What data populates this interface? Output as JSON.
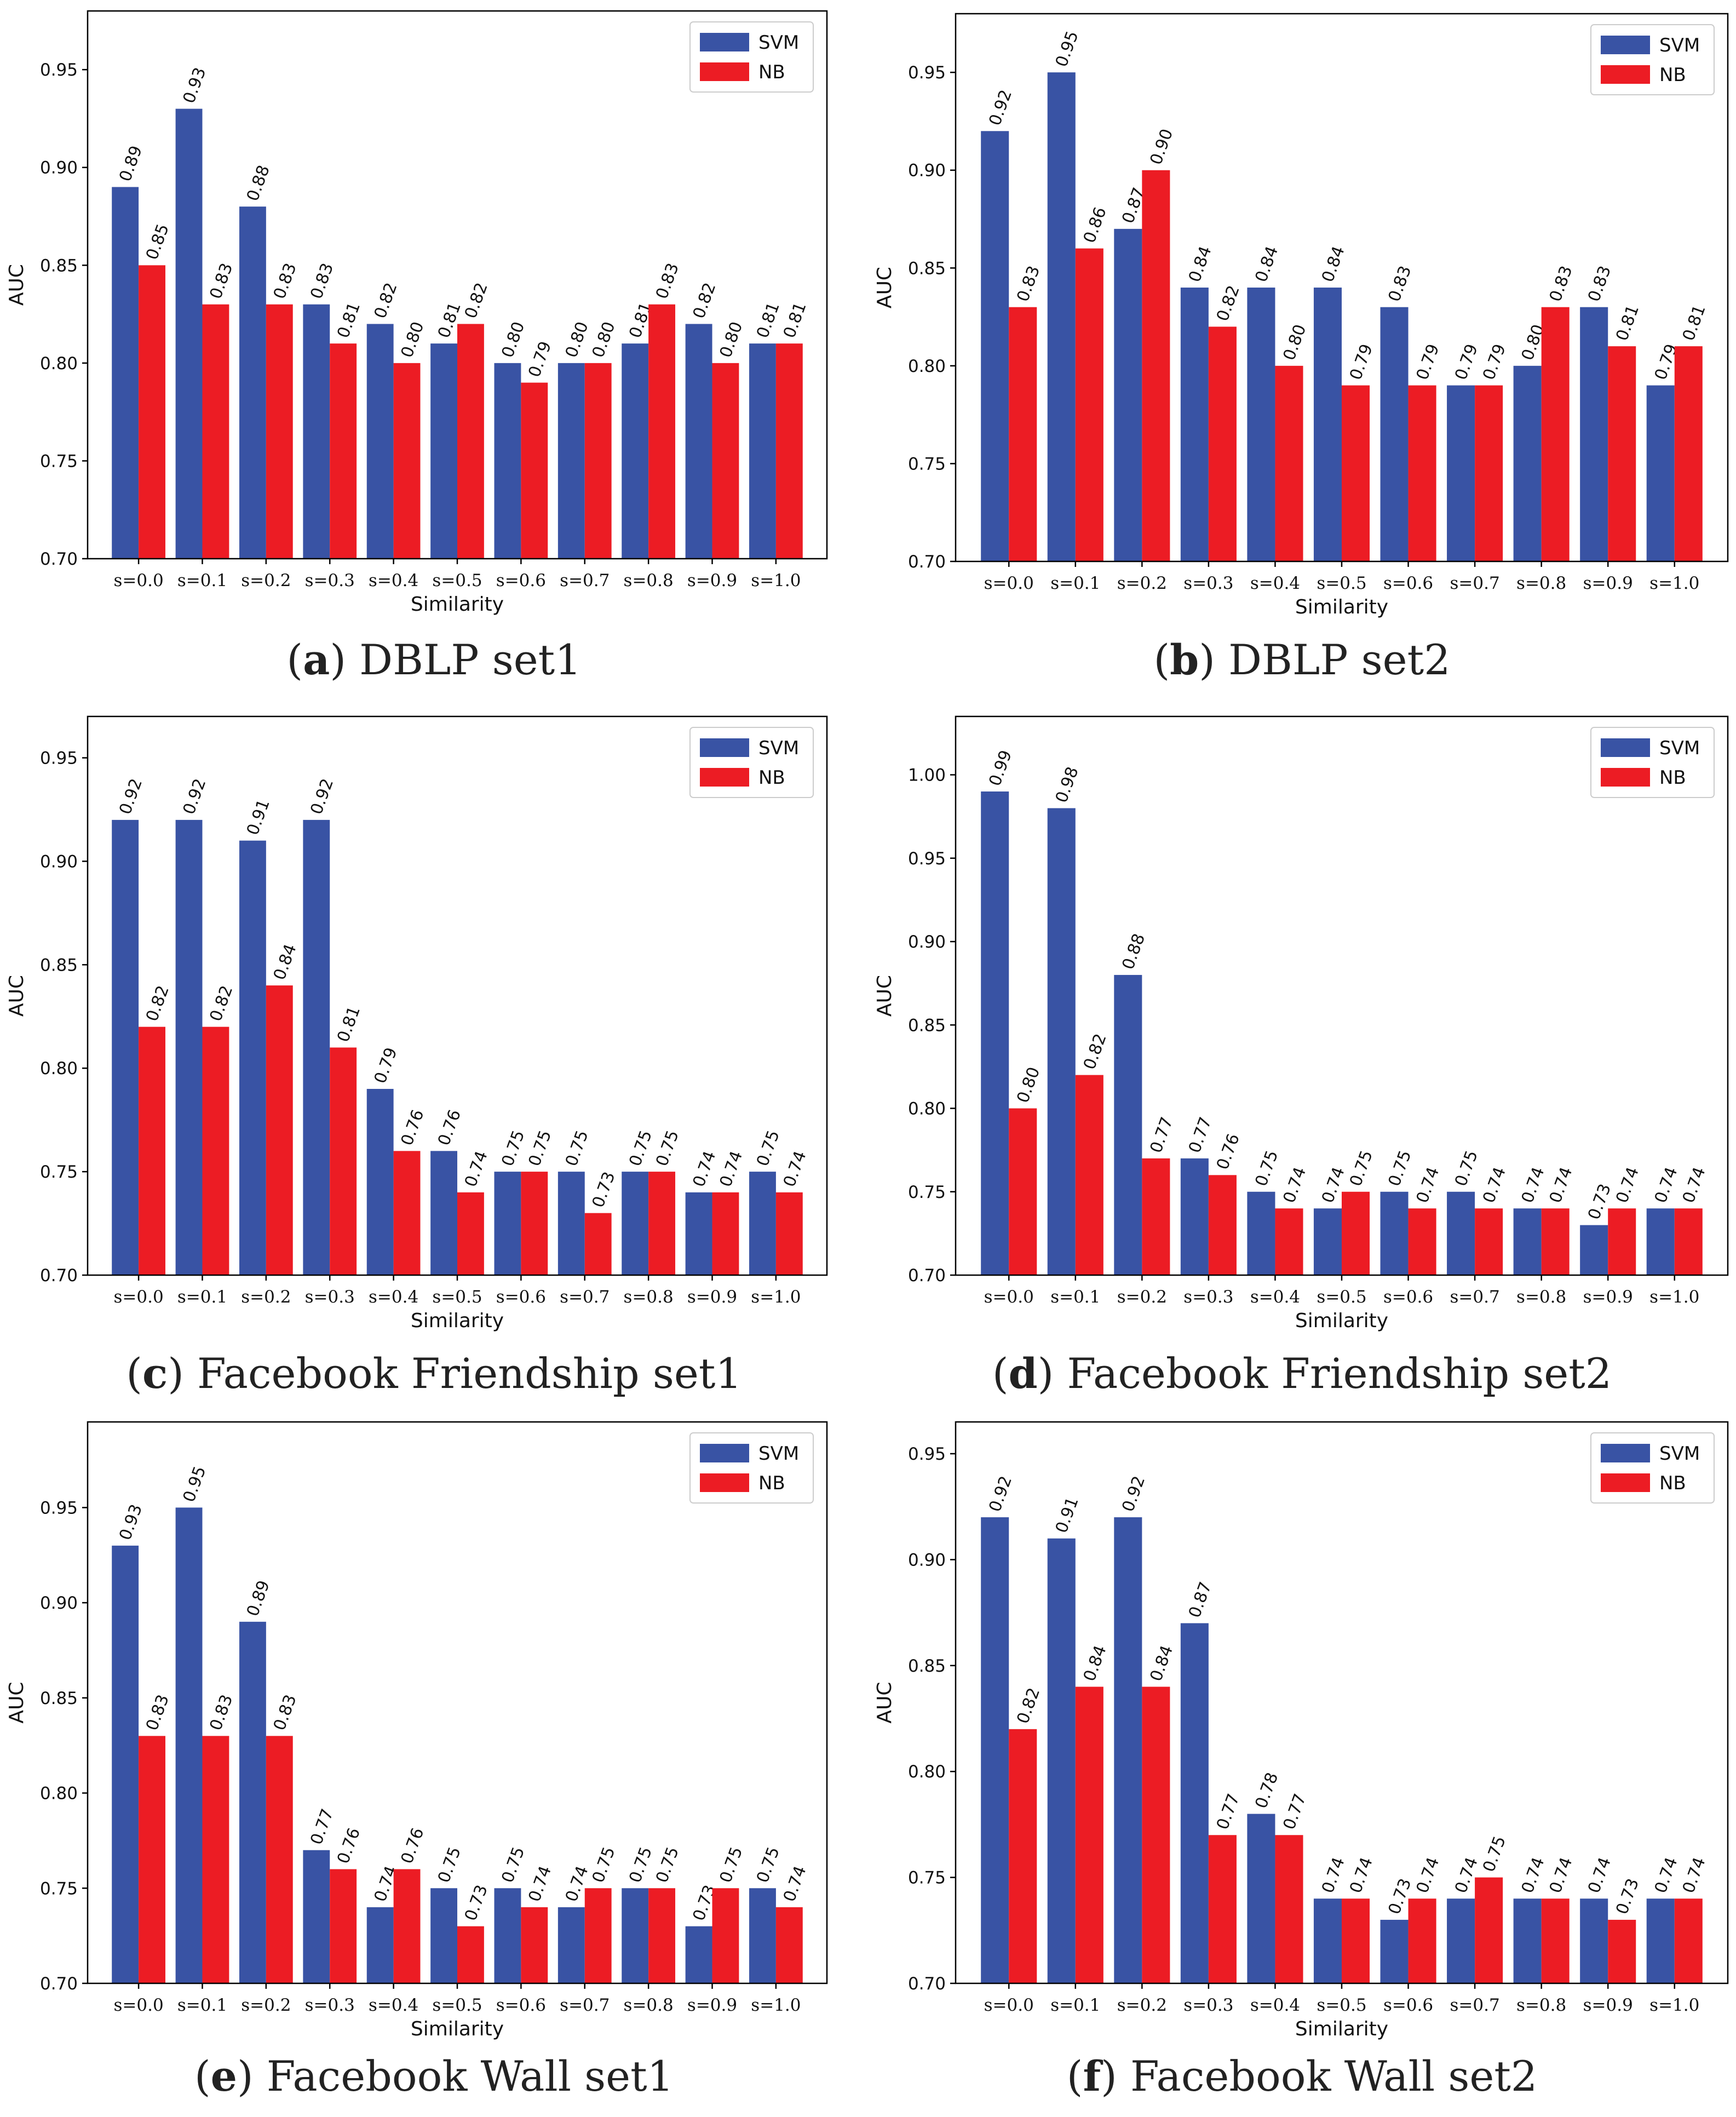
{
  "colors": {
    "SVM": "#3953a4",
    "NB": "#ec1c24"
  },
  "captions": [
    {
      "letter": "a",
      "text": "DBLP set1"
    },
    {
      "letter": "b",
      "text": "DBLP set2"
    },
    {
      "letter": "c",
      "text": "Facebook Friendship set1"
    },
    {
      "letter": "d",
      "text": "Facebook Friendship set2"
    },
    {
      "letter": "e",
      "text": "Facebook Wall set1"
    },
    {
      "letter": "f",
      "text": "Facebook Wall set2"
    }
  ],
  "chart_data": [
    {
      "type": "bar",
      "categories": [
        "s=0.0",
        "s=0.1",
        "s=0.2",
        "s=0.3",
        "s=0.4",
        "s=0.5",
        "s=0.6",
        "s=0.7",
        "s=0.8",
        "s=0.9",
        "s=1.0"
      ],
      "series": [
        {
          "name": "SVM",
          "values": [
            0.89,
            0.93,
            0.88,
            0.83,
            0.82,
            0.81,
            0.8,
            0.8,
            0.81,
            0.82,
            0.81
          ]
        },
        {
          "name": "NB",
          "values": [
            0.85,
            0.83,
            0.83,
            0.81,
            0.8,
            0.82,
            0.79,
            0.8,
            0.83,
            0.8,
            0.81
          ]
        }
      ],
      "data_labels": {
        "SVM": [
          "0.89",
          "0.93",
          "0.88",
          "0.83",
          "0.82",
          "0.81",
          "0.80",
          "0.80",
          "0.81",
          "0.82",
          "0.81"
        ],
        "NB": [
          "0.85",
          "0.83",
          "0.83",
          "0.81",
          "0.80",
          "0.82",
          "0.79",
          "0.80",
          "0.83",
          "0.80",
          "0.81"
        ]
      },
      "xlabel": "Similarity",
      "ylabel": "AUC",
      "ylim": [
        0.7,
        0.98
      ],
      "yticks": [
        "0.70",
        "0.75",
        "0.80",
        "0.85",
        "0.90",
        "0.95"
      ],
      "legend": "top-right",
      "grid": false
    },
    {
      "type": "bar",
      "categories": [
        "s=0.0",
        "s=0.1",
        "s=0.2",
        "s=0.3",
        "s=0.4",
        "s=0.5",
        "s=0.6",
        "s=0.7",
        "s=0.8",
        "s=0.9",
        "s=1.0"
      ],
      "series": [
        {
          "name": "SVM",
          "values": [
            0.92,
            0.95,
            0.87,
            0.84,
            0.84,
            0.84,
            0.83,
            0.79,
            0.8,
            0.83,
            0.79
          ]
        },
        {
          "name": "NB",
          "values": [
            0.83,
            0.86,
            0.9,
            0.82,
            0.8,
            0.79,
            0.79,
            0.79,
            0.83,
            0.81,
            0.81
          ]
        }
      ],
      "data_labels": {
        "SVM": [
          "0.92",
          "0.95",
          "0.87",
          "0.84",
          "0.84",
          "0.84",
          "0.83",
          "0.79",
          "0.80",
          "0.83",
          "0.79"
        ],
        "NB": [
          "0.83",
          "0.86",
          "0.90",
          "0.82",
          "0.80",
          "0.79",
          "0.79",
          "0.79",
          "0.83",
          "0.81",
          "0.81"
        ]
      },
      "xlabel": "Similarity",
      "ylabel": "AUC",
      "ylim": [
        0.7,
        0.98
      ],
      "yticks": [
        "0.70",
        "0.75",
        "0.80",
        "0.85",
        "0.90",
        "0.95"
      ],
      "legend": "top-right",
      "grid": false
    },
    {
      "type": "bar",
      "categories": [
        "s=0.0",
        "s=0.1",
        "s=0.2",
        "s=0.3",
        "s=0.4",
        "s=0.5",
        "s=0.6",
        "s=0.7",
        "s=0.8",
        "s=0.9",
        "s=1.0"
      ],
      "series": [
        {
          "name": "SVM",
          "values": [
            0.92,
            0.92,
            0.91,
            0.92,
            0.79,
            0.76,
            0.75,
            0.75,
            0.75,
            0.74,
            0.75
          ]
        },
        {
          "name": "NB",
          "values": [
            0.82,
            0.82,
            0.84,
            0.81,
            0.76,
            0.74,
            0.75,
            0.73,
            0.75,
            0.74,
            0.74
          ]
        }
      ],
      "data_labels": {
        "SVM": [
          "0.92",
          "0.92",
          "0.91",
          "0.92",
          "0.79",
          "0.76",
          "0.75",
          "0.75",
          "0.75",
          "0.74",
          "0.75"
        ],
        "NB": [
          "0.82",
          "0.82",
          "0.84",
          "0.81",
          "0.76",
          "0.74",
          "0.75",
          "0.73",
          "0.75",
          "0.74",
          "0.74"
        ]
      },
      "xlabel": "Similarity",
      "ylabel": "AUC",
      "ylim": [
        0.7,
        0.97
      ],
      "yticks": [
        "0.70",
        "0.75",
        "0.80",
        "0.85",
        "0.90",
        "0.95"
      ],
      "legend": "top-right",
      "grid": false
    },
    {
      "type": "bar",
      "categories": [
        "s=0.0",
        "s=0.1",
        "s=0.2",
        "s=0.3",
        "s=0.4",
        "s=0.5",
        "s=0.6",
        "s=0.7",
        "s=0.8",
        "s=0.9",
        "s=1.0"
      ],
      "series": [
        {
          "name": "SVM",
          "values": [
            0.99,
            0.98,
            0.88,
            0.77,
            0.75,
            0.74,
            0.75,
            0.75,
            0.74,
            0.73,
            0.74
          ]
        },
        {
          "name": "NB",
          "values": [
            0.8,
            0.82,
            0.77,
            0.76,
            0.74,
            0.75,
            0.74,
            0.74,
            0.74,
            0.74,
            0.74
          ]
        }
      ],
      "data_labels": {
        "SVM": [
          "0.99",
          "0.98",
          "0.88",
          "0.77",
          "0.75",
          "0.74",
          "0.75",
          "0.75",
          "0.74",
          "0.73",
          "0.74"
        ],
        "NB": [
          "0.80",
          "0.82",
          "0.77",
          "0.76",
          "0.74",
          "0.75",
          "0.74",
          "0.74",
          "0.74",
          "0.74",
          "0.74"
        ]
      },
      "xlabel": "Similarity",
      "ylabel": "AUC",
      "ylim": [
        0.7,
        1.035
      ],
      "yticks": [
        "0.70",
        "0.75",
        "0.80",
        "0.85",
        "0.90",
        "0.95",
        "1.00"
      ],
      "legend": "top-right",
      "grid": false
    },
    {
      "type": "bar",
      "categories": [
        "s=0.0",
        "s=0.1",
        "s=0.2",
        "s=0.3",
        "s=0.4",
        "s=0.5",
        "s=0.6",
        "s=0.7",
        "s=0.8",
        "s=0.9",
        "s=1.0"
      ],
      "series": [
        {
          "name": "SVM",
          "values": [
            0.93,
            0.95,
            0.89,
            0.77,
            0.74,
            0.75,
            0.75,
            0.74,
            0.75,
            0.73,
            0.75
          ]
        },
        {
          "name": "NB",
          "values": [
            0.83,
            0.83,
            0.83,
            0.76,
            0.76,
            0.73,
            0.74,
            0.75,
            0.75,
            0.75,
            0.74
          ]
        }
      ],
      "data_labels": {
        "SVM": [
          "0.93",
          "0.95",
          "0.89",
          "0.77",
          "0.74",
          "0.75",
          "0.75",
          "0.74",
          "0.75",
          "0.73",
          "0.75"
        ],
        "NB": [
          "0.83",
          "0.83",
          "0.83",
          "0.76",
          "0.76",
          "0.73",
          "0.74",
          "0.75",
          "0.75",
          "0.75",
          "0.74"
        ]
      },
      "xlabel": "Similarity",
      "ylabel": "AUC",
      "ylim": [
        0.7,
        0.995
      ],
      "yticks": [
        "0.70",
        "0.75",
        "0.80",
        "0.85",
        "0.90",
        "0.95"
      ],
      "legend": "top-right",
      "grid": false
    },
    {
      "type": "bar",
      "categories": [
        "s=0.0",
        "s=0.1",
        "s=0.2",
        "s=0.3",
        "s=0.4",
        "s=0.5",
        "s=0.6",
        "s=0.7",
        "s=0.8",
        "s=0.9",
        "s=1.0"
      ],
      "series": [
        {
          "name": "SVM",
          "values": [
            0.92,
            0.91,
            0.92,
            0.87,
            0.78,
            0.74,
            0.73,
            0.74,
            0.74,
            0.74,
            0.74
          ]
        },
        {
          "name": "NB",
          "values": [
            0.82,
            0.84,
            0.84,
            0.77,
            0.77,
            0.74,
            0.74,
            0.75,
            0.74,
            0.73,
            0.74
          ]
        }
      ],
      "data_labels": {
        "SVM": [
          "0.92",
          "0.91",
          "0.92",
          "0.87",
          "0.78",
          "0.74",
          "0.73",
          "0.74",
          "0.74",
          "0.74",
          "0.74"
        ],
        "NB": [
          "0.82",
          "0.84",
          "0.84",
          "0.77",
          "0.77",
          "0.74",
          "0.74",
          "0.75",
          "0.74",
          "0.73",
          "0.74"
        ]
      },
      "xlabel": "Similarity",
      "ylabel": "AUC",
      "ylim": [
        0.7,
        0.965
      ],
      "yticks": [
        "0.70",
        "0.75",
        "0.80",
        "0.85",
        "0.90",
        "0.95"
      ],
      "legend": "top-right",
      "grid": false
    }
  ]
}
